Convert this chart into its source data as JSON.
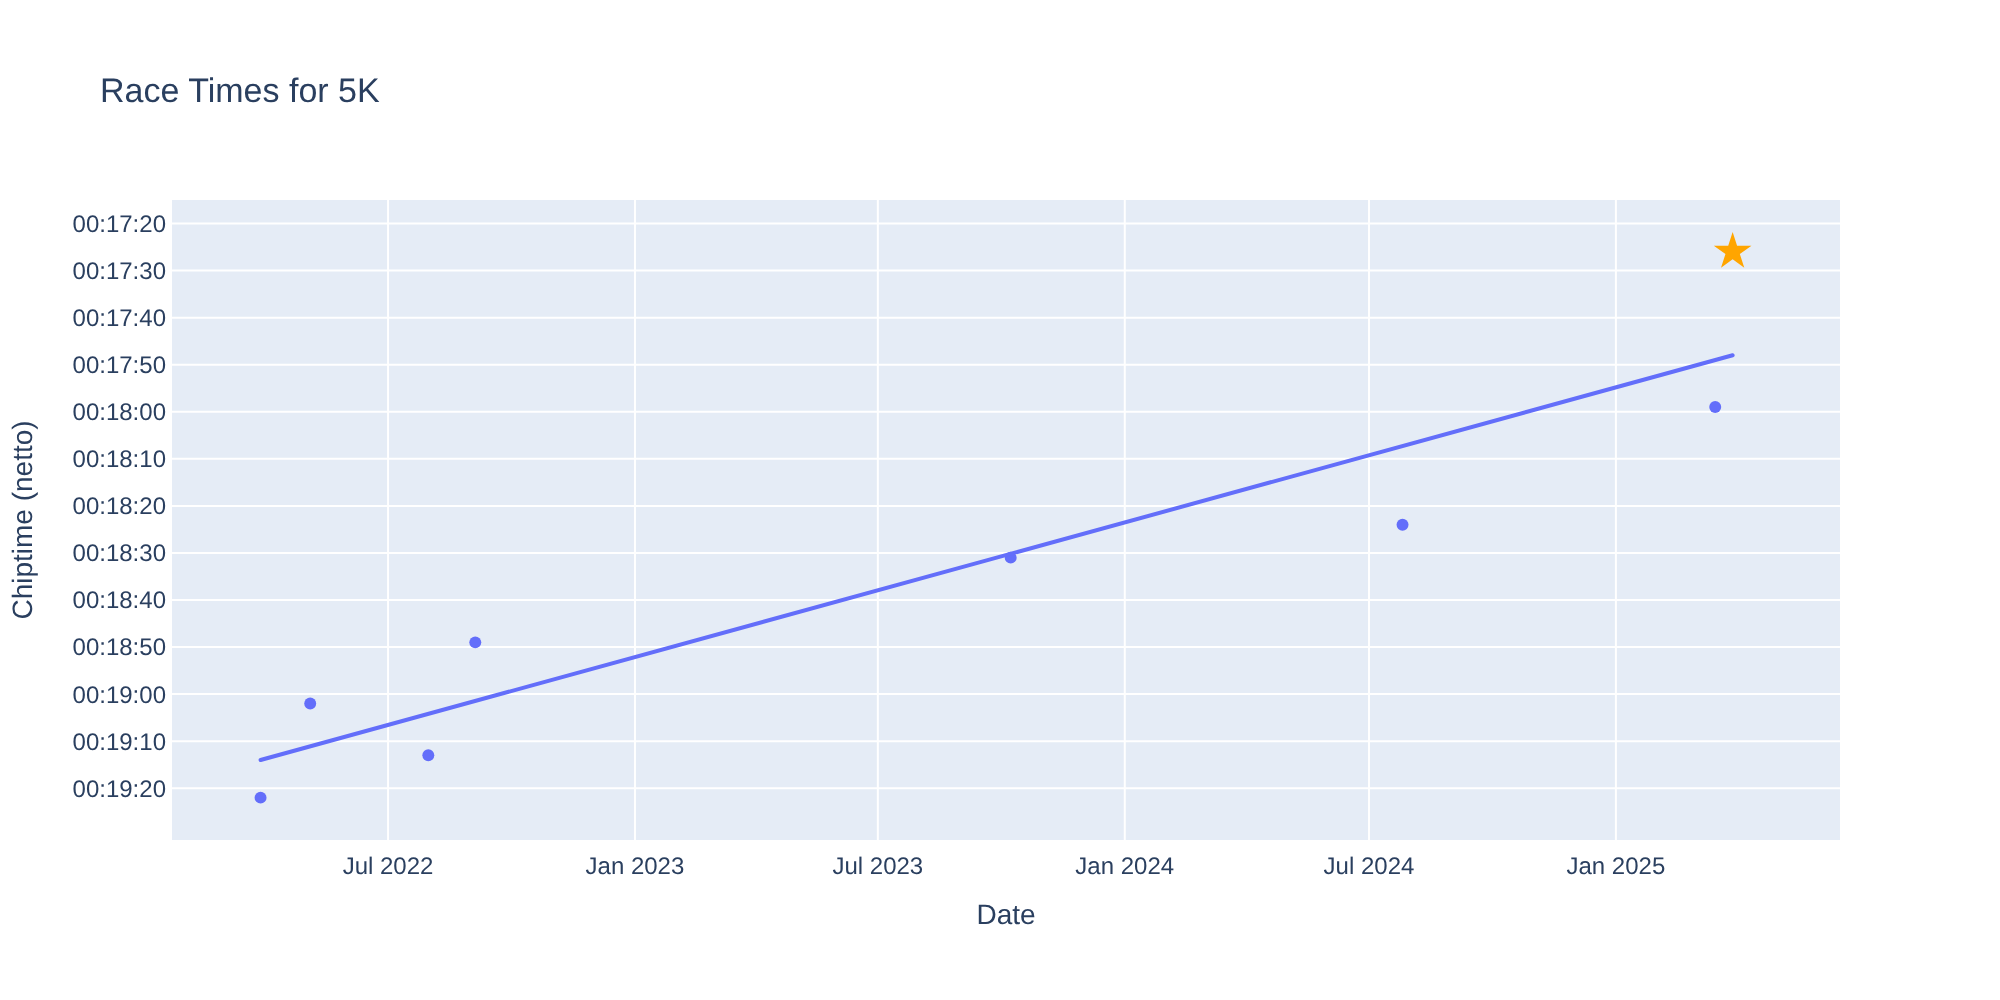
{
  "chart_data": {
    "type": "scatter",
    "title": "Race Times for 5K",
    "xlabel": "Date",
    "ylabel": "Chiptime (netto)",
    "xlim": [
      "2022-01-21",
      "2025-06-17"
    ],
    "xticks": [
      {
        "value": "2022-07-01",
        "label": "Jul 2022"
      },
      {
        "value": "2023-01-01",
        "label": "Jan 2023"
      },
      {
        "value": "2023-07-01",
        "label": "Jul 2023"
      },
      {
        "value": "2024-01-01",
        "label": "Jan 2024"
      },
      {
        "value": "2024-07-01",
        "label": "Jul 2024"
      },
      {
        "value": "2025-01-01",
        "label": "Jan 2025"
      }
    ],
    "ylim": [
      1171,
      1035
    ],
    "yticks": [
      {
        "value": 1040,
        "label": "00:17:20"
      },
      {
        "value": 1050,
        "label": "00:17:30"
      },
      {
        "value": 1060,
        "label": "00:17:40"
      },
      {
        "value": 1070,
        "label": "00:17:50"
      },
      {
        "value": 1080,
        "label": "00:18:00"
      },
      {
        "value": 1090,
        "label": "00:18:10"
      },
      {
        "value": 1100,
        "label": "00:18:20"
      },
      {
        "value": 1110,
        "label": "00:18:30"
      },
      {
        "value": 1120,
        "label": "00:18:40"
      },
      {
        "value": 1130,
        "label": "00:18:50"
      },
      {
        "value": 1140,
        "label": "00:19:00"
      },
      {
        "value": 1150,
        "label": "00:19:10"
      },
      {
        "value": 1160,
        "label": "00:19:20"
      }
    ],
    "grid": true,
    "series": [
      {
        "marker": "circle",
        "color": "#636efa",
        "x": [
          "2022-03-28",
          "2022-05-04",
          "2022-07-31",
          "2022-09-04",
          "2023-10-08",
          "2024-07-26",
          "2025-03-16"
        ],
        "values": [
          1162,
          1142,
          1153,
          1129,
          1111,
          1104,
          1079
        ]
      },
      {
        "type": "line",
        "marker": "none",
        "color": "#636efa",
        "x": [
          "2022-03-28",
          "2025-03-29"
        ],
        "values": [
          1154,
          1068
        ]
      },
      {
        "marker": "star",
        "color": "#ffa500",
        "x": [
          "2025-03-29"
        ],
        "values": [
          1046
        ]
      }
    ]
  }
}
